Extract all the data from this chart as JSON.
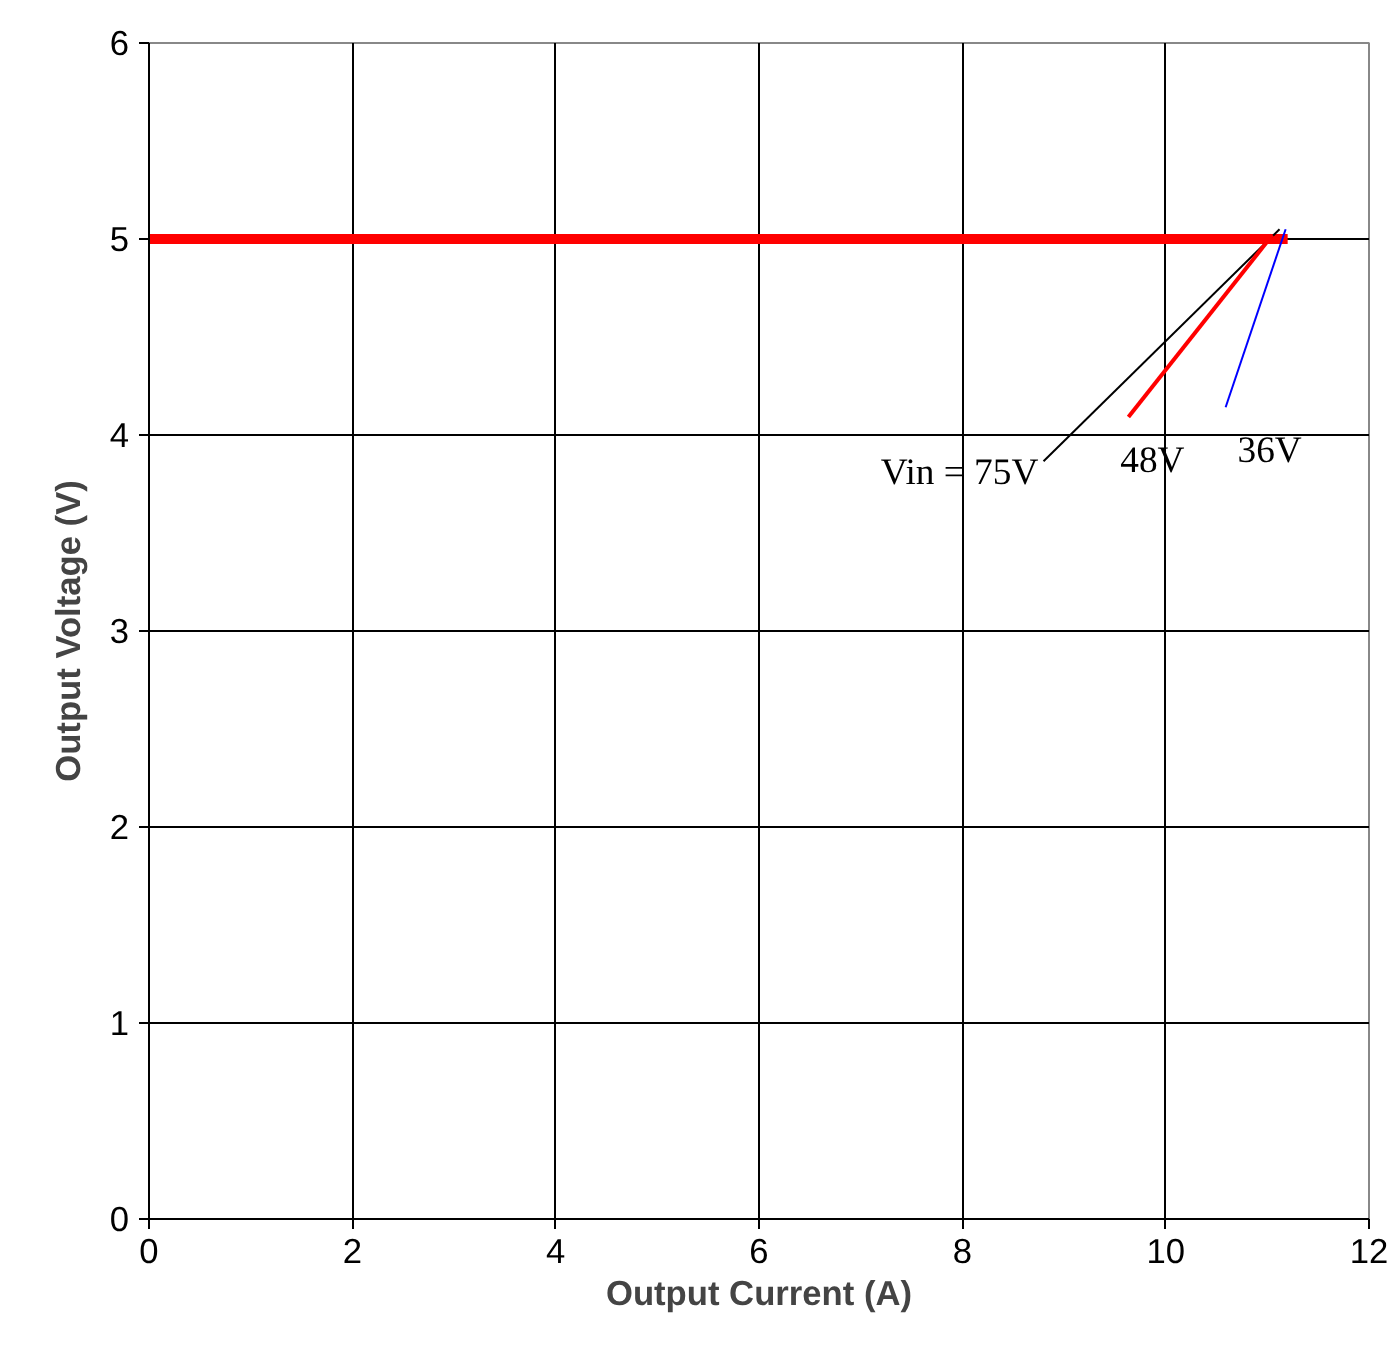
{
  "chart_data": {
    "type": "line",
    "xlabel": "Output Current (A)",
    "ylabel": "Output Voltage (V)",
    "x": [
      0,
      11.2
    ],
    "series": [
      {
        "color": "#ff0000",
        "values": [
          5,
          5
        ]
      }
    ],
    "xlim": [
      0,
      12
    ],
    "xticks": [
      0,
      2,
      4,
      6,
      8,
      10,
      12
    ],
    "ylim": [
      0,
      6
    ],
    "yticks": [
      0,
      1,
      2,
      3,
      4,
      5,
      6
    ],
    "grid": true,
    "marker": "none",
    "line_style": "solid",
    "annotations": [
      {
        "text": "Vin = 75V",
        "x": 11.12,
        "y": 5.05
      },
      {
        "text": "48V",
        "x": 11.05,
        "y": 5.02
      },
      {
        "text": "36V",
        "x": 11.18,
        "y": 5.05
      }
    ]
  }
}
